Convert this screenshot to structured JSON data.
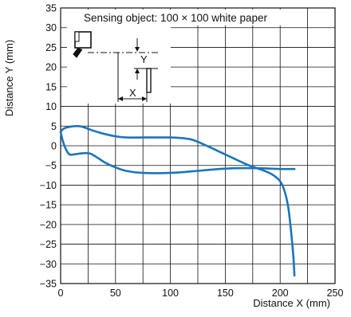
{
  "chart_data": {
    "type": "line",
    "title": "",
    "xlabel": "Distance X (mm)",
    "ylabel": "Distance Y (mm)",
    "xlim": [
      0,
      250
    ],
    "ylim": [
      -35,
      35
    ],
    "xticks": [
      0,
      50,
      100,
      150,
      200,
      250
    ],
    "yticks": [
      35,
      30,
      25,
      20,
      15,
      10,
      5,
      0,
      -5,
      -10,
      -15,
      -20,
      -25,
      -30,
      -35
    ],
    "x_minor_step": 25,
    "grid": true,
    "line_color": "#1a75bc",
    "annotation": "Sensing object: 100 × 100 white paper",
    "inset_labels": {
      "y": "Y",
      "x": "X"
    },
    "series": [
      {
        "x": [
          0,
          2,
          5,
          10,
          15,
          20,
          30,
          40,
          50,
          60,
          75,
          100,
          115,
          125,
          150,
          170,
          185,
          195,
          202,
          207,
          210,
          212,
          213
        ],
        "y": [
          3.5,
          4.2,
          4.6,
          4.9,
          5.0,
          4.8,
          3.8,
          3.0,
          2.4,
          2.1,
          2.1,
          2.1,
          1.8,
          1.0,
          -2.2,
          -4.8,
          -6.3,
          -7.7,
          -10.0,
          -15.0,
          -22.0,
          -28.0,
          -33.0
        ]
      },
      {
        "x": [
          0,
          2,
          5,
          8,
          12,
          20,
          27,
          35,
          40,
          50,
          60,
          75,
          100,
          120,
          140,
          160,
          180,
          200,
          213
        ],
        "y": [
          3.5,
          1.2,
          -1.0,
          -2.2,
          -2.2,
          -1.9,
          -2.0,
          -3.3,
          -4.2,
          -5.5,
          -6.4,
          -6.9,
          -6.9,
          -6.5,
          -6.0,
          -5.7,
          -5.7,
          -5.9,
          -5.9
        ]
      }
    ]
  }
}
